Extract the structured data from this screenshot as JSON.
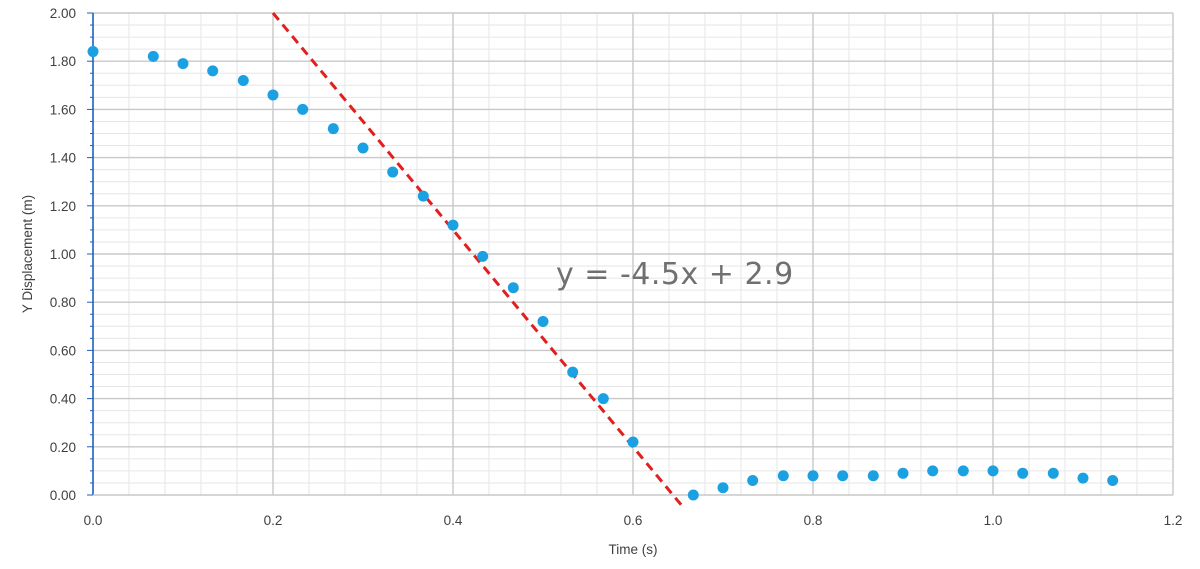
{
  "chart_data": {
    "type": "scatter",
    "title": "",
    "xlabel": "Time (s)",
    "ylabel": "Y Displacement (m)",
    "xlim": [
      0,
      1.2
    ],
    "ylim": [
      0,
      2.0
    ],
    "x_ticks": [
      "0.0",
      "0.2",
      "0.4",
      "0.6",
      "0.8",
      "1.0",
      "1.2"
    ],
    "y_ticks": [
      "0.00",
      "0.20",
      "0.40",
      "0.60",
      "0.80",
      "1.00",
      "1.20",
      "1.40",
      "1.60",
      "1.80",
      "2.00"
    ],
    "grid": "major and minor",
    "legend": "none",
    "series": [
      {
        "color": "#1ba1e2",
        "points": [
          [
            0.0,
            1.84
          ],
          [
            0.067,
            1.82
          ],
          [
            0.1,
            1.79
          ],
          [
            0.133,
            1.76
          ],
          [
            0.167,
            1.72
          ],
          [
            0.2,
            1.66
          ],
          [
            0.233,
            1.6
          ],
          [
            0.267,
            1.52
          ],
          [
            0.3,
            1.44
          ],
          [
            0.333,
            1.34
          ],
          [
            0.367,
            1.24
          ],
          [
            0.4,
            1.12
          ],
          [
            0.433,
            0.99
          ],
          [
            0.467,
            0.86
          ],
          [
            0.5,
            0.72
          ],
          [
            0.533,
            0.51
          ],
          [
            0.567,
            0.4
          ],
          [
            0.6,
            0.22
          ],
          [
            0.667,
            0.0
          ],
          [
            0.7,
            0.03
          ],
          [
            0.733,
            0.06
          ],
          [
            0.767,
            0.08
          ],
          [
            0.8,
            0.08
          ],
          [
            0.833,
            0.08
          ],
          [
            0.867,
            0.08
          ],
          [
            0.9,
            0.09
          ],
          [
            0.933,
            0.1
          ],
          [
            0.967,
            0.1
          ],
          [
            1.0,
            0.1
          ],
          [
            1.033,
            0.09
          ],
          [
            1.067,
            0.09
          ],
          [
            1.1,
            0.07
          ],
          [
            1.133,
            0.06
          ]
        ]
      }
    ],
    "trendline": {
      "color": "#e0201e",
      "style": "dashed",
      "slope": -4.5,
      "intercept": 2.9,
      "x_range": [
        0.2,
        0.657
      ],
      "equation_label": "y = -4.5x + 2.9"
    }
  }
}
